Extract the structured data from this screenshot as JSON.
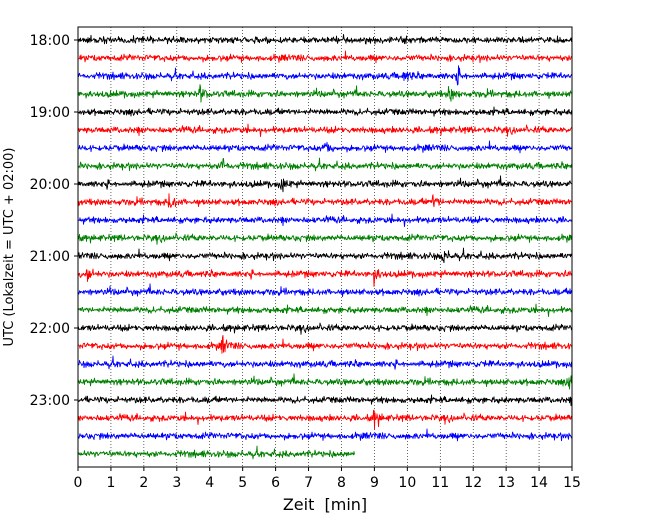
{
  "chart_data": {
    "type": "line",
    "title": "",
    "xlabel": "Zeit  [min]",
    "ylabel": "UTC (Lokalzeit = UTC + 02:00)",
    "xlim": [
      0,
      15
    ],
    "x_ticks": [
      "0",
      "1",
      "2",
      "3",
      "4",
      "5",
      "6",
      "7",
      "8",
      "9",
      "10",
      "11",
      "12",
      "13",
      "14",
      "15"
    ],
    "y_ticks": [
      "18:00",
      "19:00",
      "20:00",
      "21:00",
      "22:00",
      "23:00"
    ],
    "rows_per_hour": 4,
    "row_interval_min": 15,
    "grid": "vertical dotted at each minute",
    "trace_colors": [
      "#000000",
      "#ff0000",
      "#0000ff",
      "#008000"
    ],
    "traces": [
      {
        "start": "18:00",
        "color": "#000000",
        "end_min": 15
      },
      {
        "start": "18:15",
        "color": "#ff0000",
        "end_min": 15
      },
      {
        "start": "18:30",
        "color": "#0000ff",
        "end_min": 15
      },
      {
        "start": "18:45",
        "color": "#008000",
        "end_min": 15
      },
      {
        "start": "19:00",
        "color": "#000000",
        "end_min": 15
      },
      {
        "start": "19:15",
        "color": "#ff0000",
        "end_min": 15
      },
      {
        "start": "19:30",
        "color": "#0000ff",
        "end_min": 15
      },
      {
        "start": "19:45",
        "color": "#008000",
        "end_min": 15
      },
      {
        "start": "20:00",
        "color": "#000000",
        "end_min": 15
      },
      {
        "start": "20:15",
        "color": "#ff0000",
        "end_min": 15
      },
      {
        "start": "20:30",
        "color": "#0000ff",
        "end_min": 15
      },
      {
        "start": "20:45",
        "color": "#008000",
        "end_min": 15
      },
      {
        "start": "21:00",
        "color": "#000000",
        "end_min": 15
      },
      {
        "start": "21:15",
        "color": "#ff0000",
        "end_min": 15
      },
      {
        "start": "21:30",
        "color": "#0000ff",
        "end_min": 15
      },
      {
        "start": "21:45",
        "color": "#008000",
        "end_min": 15
      },
      {
        "start": "22:00",
        "color": "#000000",
        "end_min": 15
      },
      {
        "start": "22:15",
        "color": "#ff0000",
        "end_min": 15
      },
      {
        "start": "22:30",
        "color": "#0000ff",
        "end_min": 15
      },
      {
        "start": "22:45",
        "color": "#008000",
        "end_min": 15
      },
      {
        "start": "23:00",
        "color": "#000000",
        "end_min": 15
      },
      {
        "start": "23:15",
        "color": "#ff0000",
        "end_min": 15
      },
      {
        "start": "23:30",
        "color": "#0000ff",
        "end_min": 15
      },
      {
        "start": "23:45",
        "color": "#008000",
        "end_min": 8.4
      }
    ],
    "events": [
      {
        "trace": "18:30",
        "minute": 9.9
      },
      {
        "trace": "18:30",
        "minute": 11.5
      },
      {
        "trace": "18:45",
        "minute": 3.7
      },
      {
        "trace": "18:45",
        "minute": 11.3
      },
      {
        "trace": "19:30",
        "minute": 7.5
      },
      {
        "trace": "19:45",
        "minute": 4.4
      },
      {
        "trace": "20:00",
        "minute": 6.2
      },
      {
        "trace": "20:15",
        "minute": 2.8
      },
      {
        "trace": "20:15",
        "minute": 10.8
      },
      {
        "trace": "21:00",
        "minute": 11.1
      },
      {
        "trace": "21:15",
        "minute": 0.3
      },
      {
        "trace": "21:15",
        "minute": 9.0
      },
      {
        "trace": "22:15",
        "minute": 4.4
      },
      {
        "trace": "22:45",
        "minute": 14.9
      },
      {
        "trace": "23:15",
        "minute": 9.0
      }
    ]
  }
}
